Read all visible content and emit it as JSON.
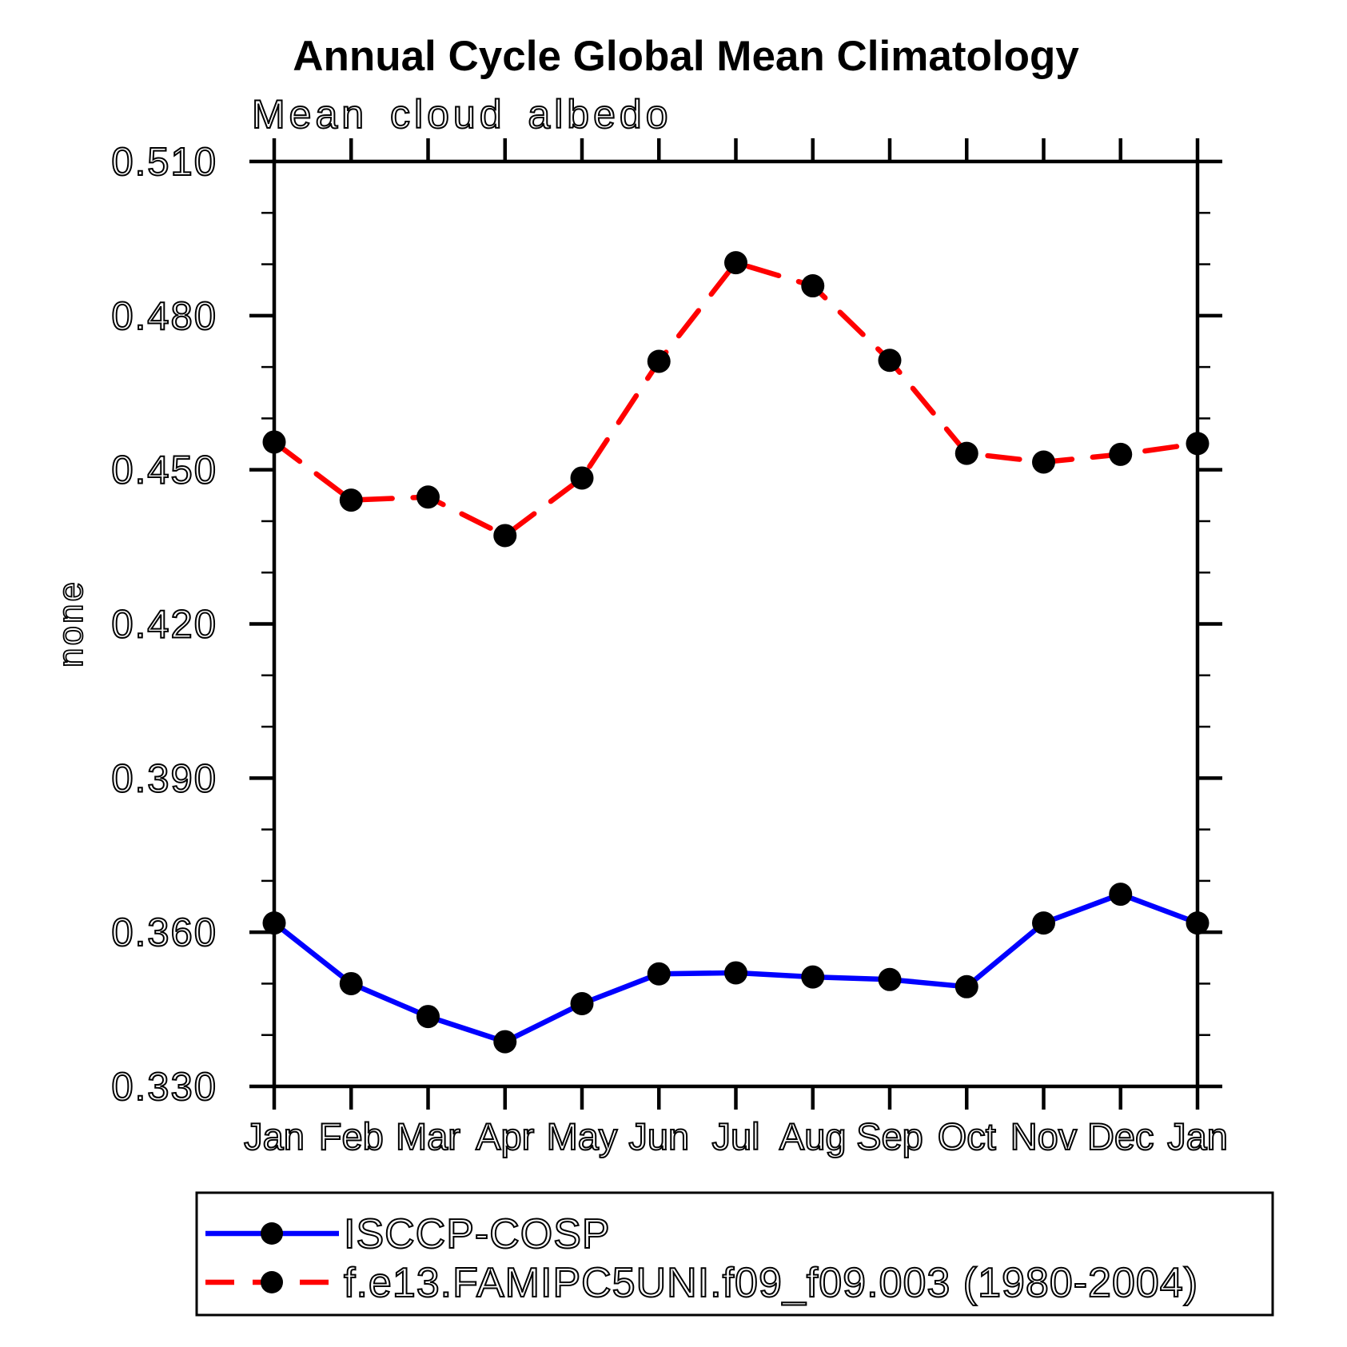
{
  "page": {
    "background_color": "#ffffff",
    "frame_color": "#000000"
  },
  "chart_data": {
    "type": "line",
    "title": "Annual Cycle Global Mean Climatology",
    "subtitle": "Mean cloud albedo",
    "xlabel": "",
    "ylabel": "none",
    "categories": [
      "Jan",
      "Feb",
      "Mar",
      "Apr",
      "May",
      "Jun",
      "Jul",
      "Aug",
      "Sep",
      "Oct",
      "Nov",
      "Dec",
      "Jan"
    ],
    "ylim": [
      0.33,
      0.51
    ],
    "ytick_interval": 0.03,
    "ytick_minor_interval": 0.01,
    "ytick_labels": [
      "0.330",
      "0.360",
      "0.390",
      "0.420",
      "0.450",
      "0.480",
      "0.510"
    ],
    "grid": false,
    "legend_position": "bottom-left-box",
    "series": [
      {
        "name": "ISCCP-COSP",
        "line_style": "solid",
        "line_color": "#0000ff",
        "marker": "filled-circle",
        "marker_color": "#000000",
        "values": [
          0.3618,
          0.35,
          0.3436,
          0.3387,
          0.3461,
          0.3519,
          0.3521,
          0.3513,
          0.3508,
          0.3494,
          0.3618,
          0.3674,
          0.3618
        ]
      },
      {
        "name": "f.e13.FAMIPC5UNI.f09_f09.003 (1980-2004)",
        "line_style": "dashed",
        "line_color": "#ff0000",
        "marker": "filled-circle",
        "marker_color": "#000000",
        "values": [
          0.4554,
          0.4441,
          0.4447,
          0.4372,
          0.4484,
          0.4711,
          0.4903,
          0.4858,
          0.4713,
          0.4532,
          0.4515,
          0.453,
          0.4551
        ]
      }
    ]
  }
}
